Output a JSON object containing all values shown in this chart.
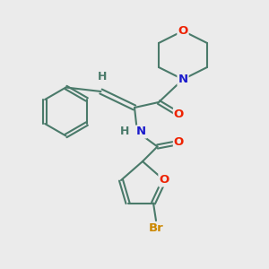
{
  "background_color": "#ebebeb",
  "bond_color": "#4a7a6a",
  "bond_width": 1.5,
  "atom_colors": {
    "O": "#ee2200",
    "N": "#1c1ccc",
    "Br": "#cc8800",
    "C": "#4a7a6a",
    "H": "#4a7a6a"
  },
  "font_size": 9.5,
  "fig_width": 3.0,
  "fig_height": 3.0,
  "dpi": 100
}
